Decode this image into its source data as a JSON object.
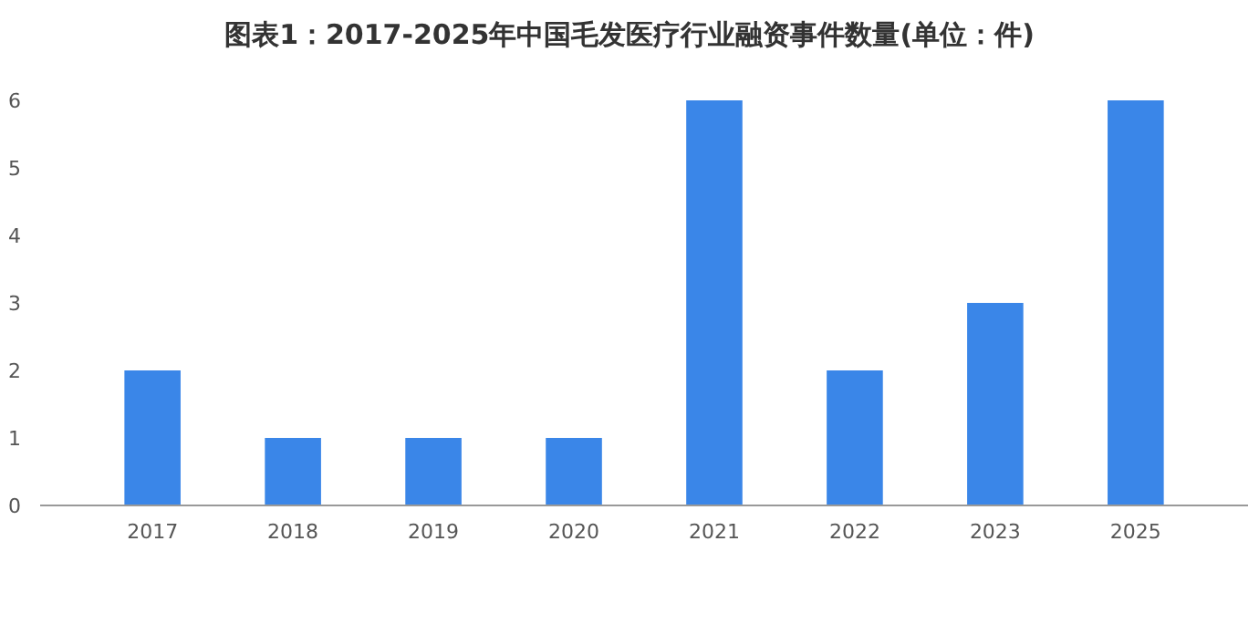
{
  "chart_data": {
    "type": "bar",
    "title": "图表1：2017-2025年中国毛发医疗行业融资事件数量(单位：件)",
    "categories": [
      "2017",
      "2018",
      "2019",
      "2020",
      "2021",
      "2022",
      "2023",
      "2025"
    ],
    "values": [
      2,
      1,
      1,
      1,
      6,
      2,
      3,
      6
    ],
    "color": "#3a86e8",
    "ylim": [
      0,
      6
    ],
    "yticks": [
      0,
      1,
      2,
      3,
      4,
      5,
      6
    ],
    "grid": false
  }
}
